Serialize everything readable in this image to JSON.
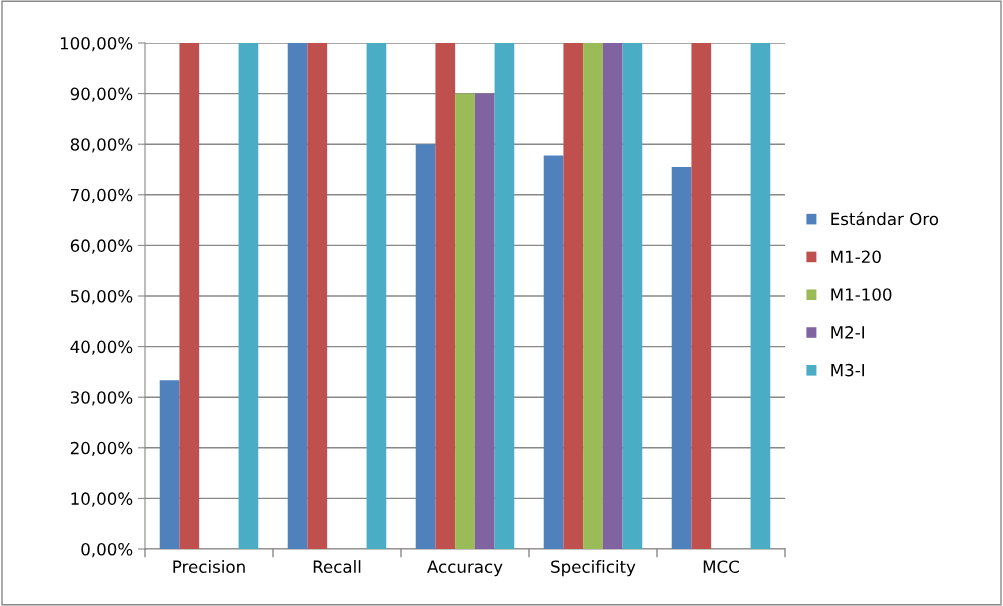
{
  "chart_data": {
    "type": "bar",
    "categories": [
      "Precision",
      "Recall",
      "Accuracy",
      "Specificity",
      "MCC"
    ],
    "series": [
      {
        "name": "Estándar Oro",
        "color": "#4f81bd",
        "values": [
          33.33,
          100,
          80,
          77.78,
          75.5
        ]
      },
      {
        "name": "M1-20",
        "color": "#c0504d",
        "values": [
          100,
          100,
          100,
          100,
          100
        ]
      },
      {
        "name": "M1-100",
        "color": "#9bbb59",
        "values": [
          null,
          null,
          90,
          100,
          null
        ]
      },
      {
        "name": "M2-I",
        "color": "#8064a2",
        "values": [
          null,
          null,
          90,
          100,
          null
        ]
      },
      {
        "name": "M3-I",
        "color": "#4bacc6",
        "values": [
          100,
          100,
          100,
          100,
          100
        ]
      }
    ],
    "ylim": [
      0,
      100
    ],
    "yticks": [
      {
        "value": 0,
        "label": "0,00%"
      },
      {
        "value": 10,
        "label": "10,00%"
      },
      {
        "value": 20,
        "label": "20,00%"
      },
      {
        "value": 30,
        "label": "30,00%"
      },
      {
        "value": 40,
        "label": "40,00%"
      },
      {
        "value": 50,
        "label": "50,00%"
      },
      {
        "value": 60,
        "label": "60,00%"
      },
      {
        "value": 70,
        "label": "70,00%"
      },
      {
        "value": 80,
        "label": "80,00%"
      },
      {
        "value": 90,
        "label": "90,00%"
      },
      {
        "value": 100,
        "label": "100,00%"
      }
    ],
    "grid": "y",
    "legend": "right"
  }
}
